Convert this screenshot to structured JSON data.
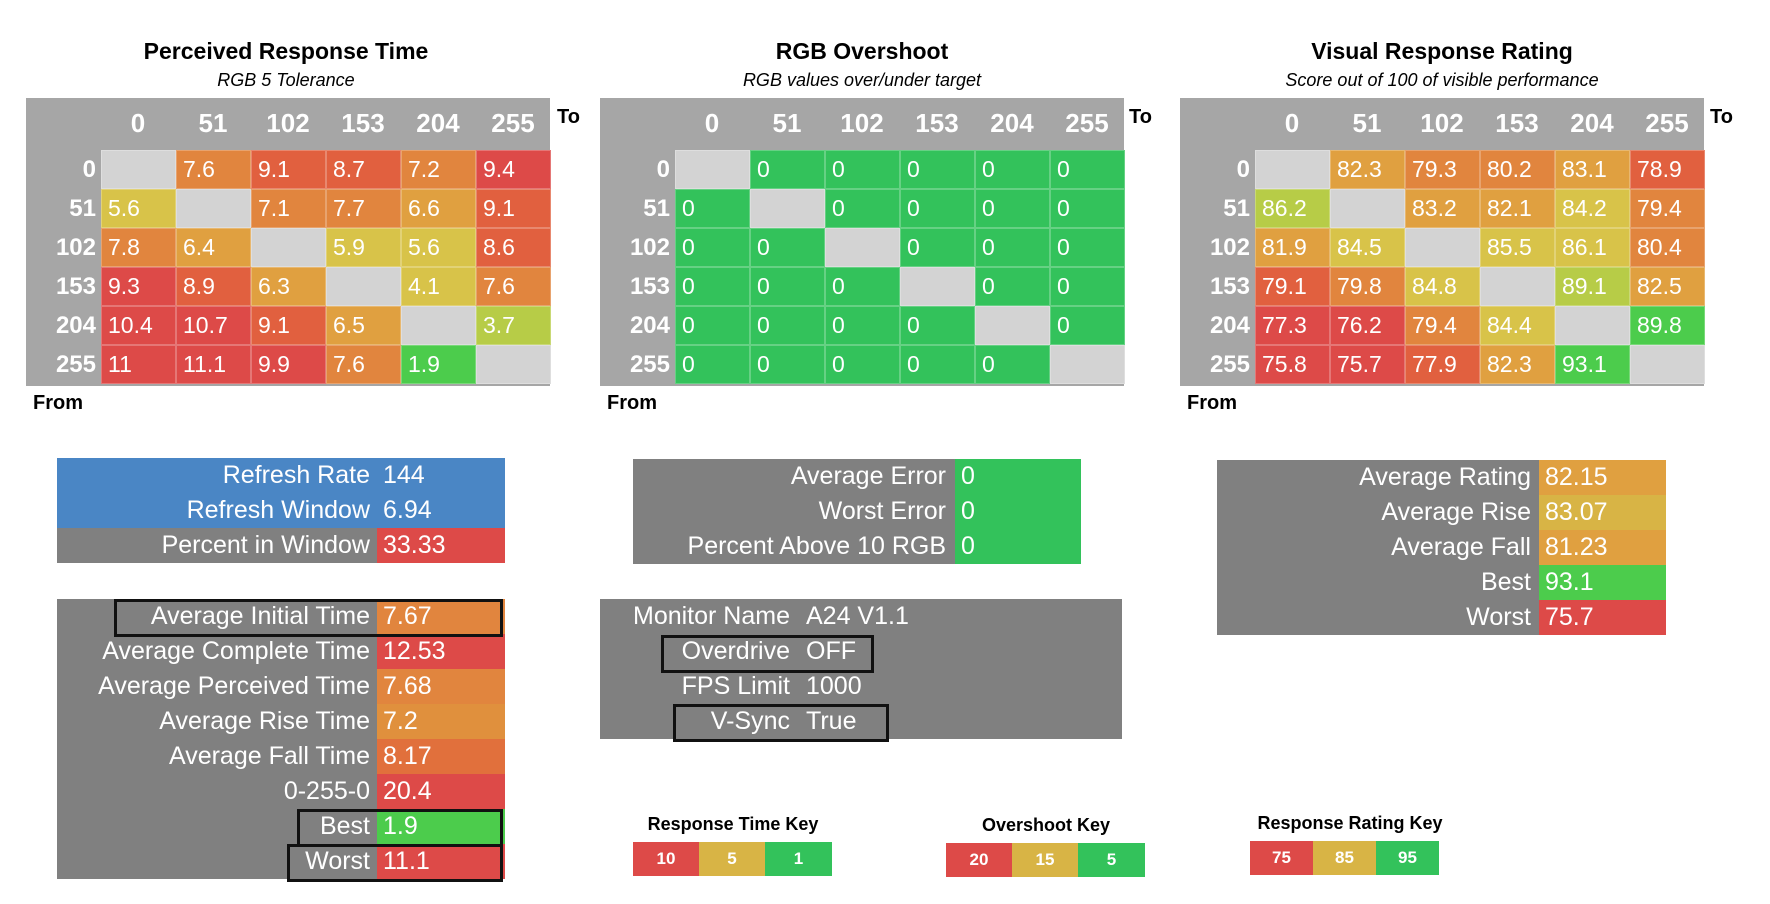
{
  "colors": {
    "red": "#dd4a48",
    "red_orange": "#e1603f",
    "orange": "#e1853e",
    "amber": "#e0a040",
    "yellow": "#d8c349",
    "yellow_green": "#b7cc47",
    "green": "#4ccc4c",
    "green2": "#33c25b",
    "gray_blank": "#d3d3d3",
    "blue": "#4a86c5",
    "panel_gray": "#808080",
    "header_gray": "#a6a6a6"
  },
  "matrices": [
    {
      "title": "Perceived Response Time",
      "subtitle": "RGB 5 Tolerance",
      "to_label": "To",
      "from_label": "From",
      "cols": [
        "0",
        "51",
        "102",
        "153",
        "204",
        "255"
      ],
      "rows": [
        "0",
        "51",
        "102",
        "153",
        "204",
        "255"
      ],
      "values": [
        [
          "",
          "7.6",
          "9.1",
          "8.7",
          "7.2",
          "9.4"
        ],
        [
          "5.6",
          "",
          "7.1",
          "7.7",
          "6.6",
          "9.1"
        ],
        [
          "7.8",
          "6.4",
          "",
          "5.9",
          "5.6",
          "8.6"
        ],
        [
          "9.3",
          "8.9",
          "6.3",
          "",
          "4.1",
          "7.6"
        ],
        [
          "10.4",
          "10.7",
          "9.1",
          "6.5",
          "",
          "3.7"
        ],
        [
          "11",
          "11.1",
          "9.9",
          "7.6",
          "1.9",
          ""
        ]
      ],
      "cell_colors": [
        [
          "gray_blank",
          "orange",
          "red_orange",
          "red_orange",
          "orange",
          "red"
        ],
        [
          "yellow",
          "gray_blank",
          "orange",
          "orange",
          "amber",
          "red_orange"
        ],
        [
          "orange",
          "amber",
          "gray_blank",
          "yellow",
          "yellow",
          "red_orange"
        ],
        [
          "red",
          "red_orange",
          "amber",
          "gray_blank",
          "yellow",
          "orange"
        ],
        [
          "red",
          "red",
          "red_orange",
          "amber",
          "gray_blank",
          "yellow_green"
        ],
        [
          "red",
          "red",
          "red",
          "orange",
          "green",
          "gray_blank"
        ]
      ]
    },
    {
      "title": "RGB Overshoot",
      "subtitle": "RGB values over/under target",
      "to_label": "To",
      "from_label": "From",
      "cols": [
        "0",
        "51",
        "102",
        "153",
        "204",
        "255"
      ],
      "rows": [
        "0",
        "51",
        "102",
        "153",
        "204",
        "255"
      ],
      "values": [
        [
          "",
          "0",
          "0",
          "0",
          "0",
          "0"
        ],
        [
          "0",
          "",
          "0",
          "0",
          "0",
          "0"
        ],
        [
          "0",
          "0",
          "",
          "0",
          "0",
          "0"
        ],
        [
          "0",
          "0",
          "0",
          "",
          "0",
          "0"
        ],
        [
          "0",
          "0",
          "0",
          "0",
          "",
          "0"
        ],
        [
          "0",
          "0",
          "0",
          "0",
          "0",
          ""
        ]
      ],
      "cell_colors": [
        [
          "gray_blank",
          "green2",
          "green2",
          "green2",
          "green2",
          "green2"
        ],
        [
          "green2",
          "gray_blank",
          "green2",
          "green2",
          "green2",
          "green2"
        ],
        [
          "green2",
          "green2",
          "gray_blank",
          "green2",
          "green2",
          "green2"
        ],
        [
          "green2",
          "green2",
          "green2",
          "gray_blank",
          "green2",
          "green2"
        ],
        [
          "green2",
          "green2",
          "green2",
          "green2",
          "gray_blank",
          "green2"
        ],
        [
          "green2",
          "green2",
          "green2",
          "green2",
          "green2",
          "gray_blank"
        ]
      ]
    },
    {
      "title": "Visual Response Rating",
      "subtitle": "Score out of 100 of visible performance",
      "to_label": "To",
      "from_label": "From",
      "cols": [
        "0",
        "51",
        "102",
        "153",
        "204",
        "255"
      ],
      "rows": [
        "0",
        "51",
        "102",
        "153",
        "204",
        "255"
      ],
      "values": [
        [
          "",
          "82.3",
          "79.3",
          "80.2",
          "83.1",
          "78.9"
        ],
        [
          "86.2",
          "",
          "83.2",
          "82.1",
          "84.2",
          "79.4"
        ],
        [
          "81.9",
          "84.5",
          "",
          "85.5",
          "86.1",
          "80.4"
        ],
        [
          "79.1",
          "79.8",
          "84.8",
          "",
          "89.1",
          "82.5"
        ],
        [
          "77.3",
          "76.2",
          "79.4",
          "84.4",
          "",
          "89.8"
        ],
        [
          "75.8",
          "75.7",
          "77.9",
          "82.3",
          "93.1",
          ""
        ]
      ],
      "cell_colors": [
        [
          "gray_blank",
          "amber",
          "orange",
          "orange",
          "amber",
          "red_orange"
        ],
        [
          "yellow_green",
          "gray_blank",
          "amber",
          "amber",
          "yellow",
          "orange"
        ],
        [
          "amber",
          "yellow",
          "gray_blank",
          "yellow",
          "yellow",
          "orange"
        ],
        [
          "red_orange",
          "orange",
          "yellow",
          "gray_blank",
          "yellow_green",
          "amber"
        ],
        [
          "red",
          "red",
          "orange",
          "yellow",
          "gray_blank",
          "green"
        ],
        [
          "red",
          "red",
          "red_orange",
          "amber",
          "green",
          "gray_blank"
        ]
      ]
    }
  ],
  "refresh_panel": [
    {
      "label": "Refresh Rate",
      "value": "144"
    },
    {
      "label": "Refresh Window",
      "value": "6.94"
    },
    {
      "label": "Percent in Window",
      "value": "33.33"
    }
  ],
  "error_panel": [
    {
      "label": "Average Error",
      "value": "0"
    },
    {
      "label": "Worst Error",
      "value": "0"
    },
    {
      "label": "Percent Above 10 RGB",
      "value": "0"
    }
  ],
  "rating_panel": [
    {
      "label": "Average Rating",
      "value": "82.15"
    },
    {
      "label": "Average Rise",
      "value": "83.07"
    },
    {
      "label": "Average Fall",
      "value": "81.23"
    },
    {
      "label": "Best",
      "value": "93.1"
    },
    {
      "label": "Worst",
      "value": "75.7"
    }
  ],
  "time_panel": [
    {
      "label": "Average Initial Time",
      "value": "7.67"
    },
    {
      "label": "Average Complete Time",
      "value": "12.53"
    },
    {
      "label": "Average Perceived Time",
      "value": "7.68"
    },
    {
      "label": "Average Rise Time",
      "value": "7.2"
    },
    {
      "label": "Average Fall Time",
      "value": "8.17"
    },
    {
      "label": "0-255-0",
      "value": "20.4"
    },
    {
      "label": "Best",
      "value": "1.9"
    },
    {
      "label": "Worst",
      "value": "11.1"
    }
  ],
  "monitor_panel": [
    {
      "label": "Monitor Name",
      "value": "A24 V1.1"
    },
    {
      "label": "Overdrive",
      "value": "OFF"
    },
    {
      "label": "FPS Limit",
      "value": "1000"
    },
    {
      "label": "V-Sync",
      "value": "True"
    }
  ],
  "keys": [
    {
      "title": "Response Time Key",
      "cells": [
        "10",
        "5",
        "1"
      ]
    },
    {
      "title": "Overshoot Key",
      "cells": [
        "20",
        "15",
        "5"
      ]
    },
    {
      "title": "Response Rating Key",
      "cells": [
        "75",
        "85",
        "95"
      ]
    }
  ]
}
